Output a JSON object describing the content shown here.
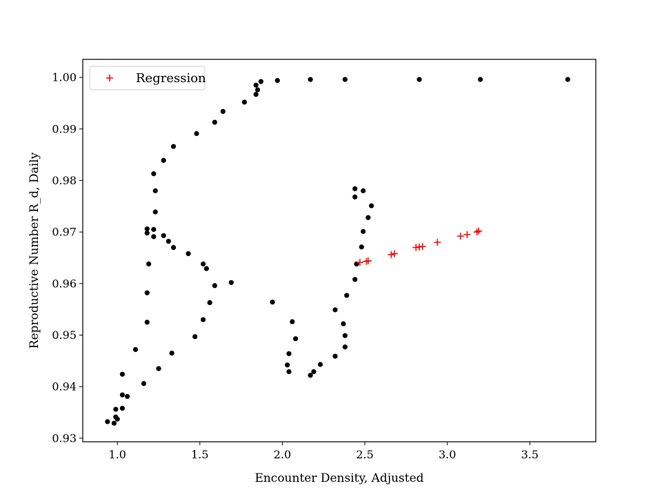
{
  "chart_data": {
    "type": "scatter",
    "title": "",
    "xlabel": "Encounter Density, Adjusted",
    "ylabel": "Reproductive Number R_d, Daily",
    "xlim": [
      0.79,
      3.9
    ],
    "ylim": [
      0.9293,
      1.0035
    ],
    "xticks": [
      1.0,
      1.5,
      2.0,
      2.5,
      3.0,
      3.5
    ],
    "xtick_labels": [
      "1.0",
      "1.5",
      "2.0",
      "2.5",
      "3.0",
      "3.5"
    ],
    "yticks": [
      0.93,
      0.94,
      0.95,
      0.96,
      0.97,
      0.98,
      0.99,
      1.0
    ],
    "ytick_labels": [
      "0.93",
      "0.94",
      "0.95",
      "0.96",
      "0.97",
      "0.98",
      "0.99",
      "1.00"
    ],
    "grid": false,
    "legend_position": "upper-left",
    "series": [
      {
        "name": "",
        "marker": "dot",
        "color": "#000000",
        "x": [
          0.94,
          0.98,
          0.99,
          1.0,
          0.99,
          1.03,
          1.03,
          1.06,
          1.03,
          1.11,
          1.16,
          1.18,
          1.18,
          1.19,
          1.18,
          1.18,
          1.22,
          1.22,
          1.23,
          1.23,
          1.22,
          1.28,
          1.34,
          1.48,
          1.59,
          1.64,
          1.77,
          1.84,
          1.84,
          1.85,
          1.87,
          1.97,
          2.17,
          2.38,
          2.83,
          3.2,
          3.73,
          1.25,
          1.33,
          1.47,
          1.52,
          1.56,
          1.59,
          1.52,
          1.54,
          1.43,
          1.34,
          1.31,
          1.28,
          1.69,
          1.94,
          2.06,
          2.08,
          2.04,
          2.03,
          2.04,
          2.17,
          2.19,
          2.23,
          2.32,
          2.38,
          2.38,
          2.37,
          2.32,
          2.39,
          2.44,
          2.45,
          2.48,
          2.49,
          2.52,
          2.54,
          2.49,
          2.44,
          2.44
        ],
        "y": [
          0.9332,
          0.9329,
          0.9341,
          0.9337,
          0.9356,
          0.9358,
          0.9384,
          0.9381,
          0.9424,
          0.9472,
          0.9406,
          0.9525,
          0.9582,
          0.9638,
          0.9698,
          0.9706,
          0.9691,
          0.9705,
          0.9739,
          0.978,
          0.9813,
          0.9839,
          0.9866,
          0.9891,
          0.9913,
          0.9934,
          0.9952,
          0.9967,
          0.9985,
          0.9976,
          0.9992,
          0.9994,
          0.9996,
          0.9996,
          0.9996,
          0.9996,
          0.9996,
          0.9435,
          0.9465,
          0.9497,
          0.953,
          0.9563,
          0.9596,
          0.9638,
          0.9629,
          0.9658,
          0.967,
          0.9682,
          0.9693,
          0.9602,
          0.9564,
          0.9526,
          0.9493,
          0.9464,
          0.9442,
          0.9429,
          0.9422,
          0.9429,
          0.9443,
          0.9459,
          0.9477,
          0.9499,
          0.9522,
          0.9549,
          0.9577,
          0.9608,
          0.9638,
          0.9671,
          0.9701,
          0.9728,
          0.9751,
          0.978,
          0.9784,
          0.9768
        ]
      },
      {
        "name": "Regression",
        "marker": "plus",
        "color": "#ff0000",
        "x": [
          2.47,
          2.51,
          2.52,
          2.66,
          2.68,
          2.81,
          2.83,
          2.85,
          2.94,
          3.08,
          3.12,
          3.18,
          3.19
        ],
        "y": [
          0.9641,
          0.9643,
          0.9644,
          0.9656,
          0.9658,
          0.967,
          0.9671,
          0.9672,
          0.968,
          0.9692,
          0.9695,
          0.97,
          0.9702
        ]
      }
    ]
  }
}
